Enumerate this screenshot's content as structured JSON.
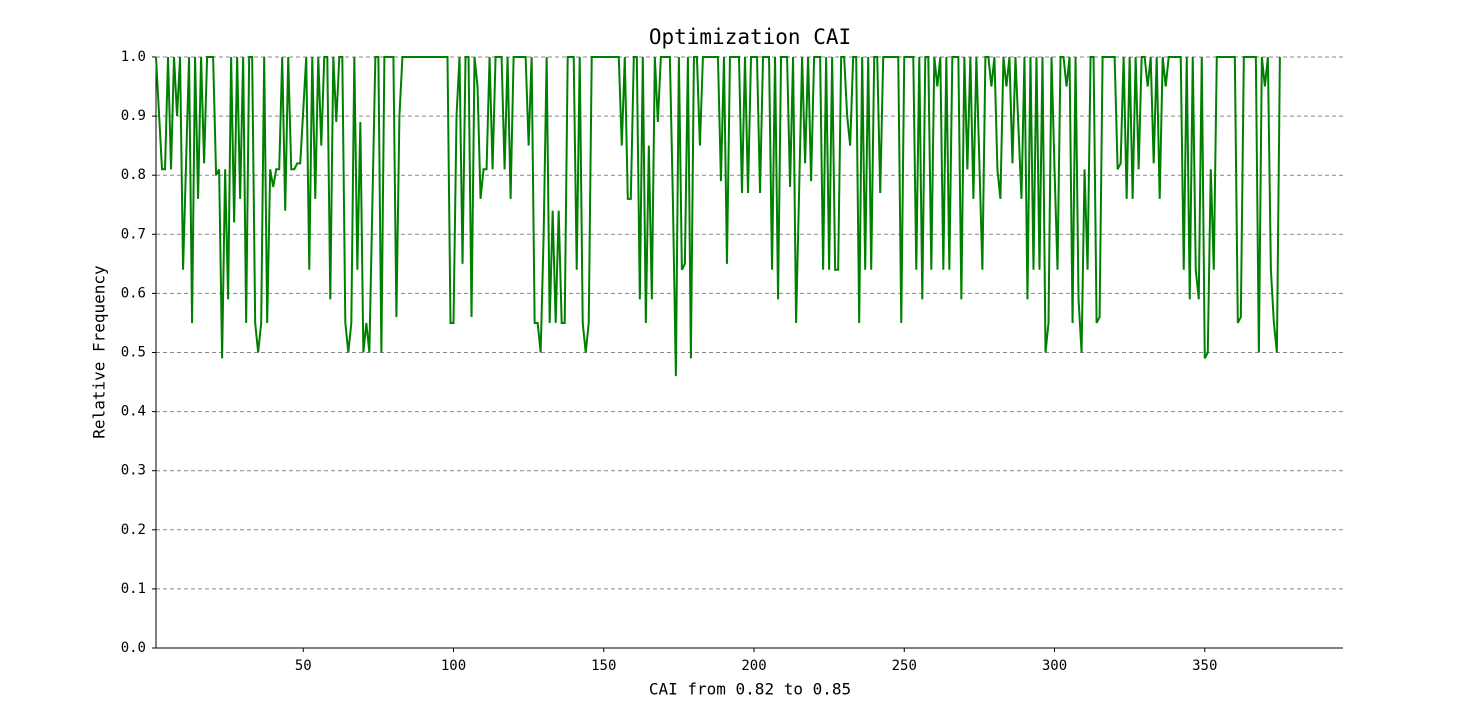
{
  "chart_data": {
    "type": "line",
    "title": "Optimization CAI",
    "x_label": "CAI from 0.82 to 0.85",
    "y_label": "Relative Frequency",
    "grid": true,
    "xlim": [
      1,
      396
    ],
    "xticks": [
      50,
      100,
      150,
      200,
      250,
      300,
      350
    ],
    "ylim": [
      0,
      1
    ],
    "yticks": [
      {
        "value": 0,
        "label": "0.0"
      },
      0.1,
      0.2,
      0.3,
      0.4,
      0.5,
      0.6,
      0.7,
      0.8,
      0.9,
      {
        "value": 1,
        "label": "1.0"
      }
    ],
    "x": [
      1,
      3,
      4,
      5,
      6,
      7,
      8,
      9,
      10,
      11,
      12,
      13,
      14,
      15,
      16,
      17,
      18,
      20,
      21,
      22,
      23,
      24,
      25,
      26,
      27,
      28,
      29,
      30,
      31,
      32,
      33,
      34,
      35,
      36,
      37,
      38,
      39,
      40,
      41,
      42,
      43,
      44,
      45,
      46,
      47,
      48,
      49,
      51,
      52,
      53,
      54,
      55,
      56,
      57,
      58,
      59,
      60,
      61,
      62,
      63,
      64,
      65,
      66,
      67,
      68,
      69,
      70,
      71,
      72,
      74,
      75,
      76,
      77,
      80,
      81,
      82,
      83,
      98,
      99,
      100,
      101,
      102,
      103,
      104,
      105,
      106,
      107,
      108,
      109,
      110,
      111,
      112,
      113,
      114,
      116,
      117,
      118,
      119,
      120,
      124,
      125,
      126,
      127,
      128,
      129,
      130,
      131,
      132,
      133,
      134,
      135,
      136,
      137,
      138,
      140,
      141,
      142,
      143,
      144,
      145,
      146,
      155,
      156,
      157,
      158,
      159,
      160,
      161,
      162,
      163,
      164,
      165,
      166,
      167,
      168,
      169,
      172,
      173,
      174,
      175,
      176,
      177,
      178,
      179,
      180,
      181,
      182,
      183,
      188,
      189,
      190,
      191,
      192,
      195,
      196,
      197,
      198,
      199,
      201,
      202,
      203,
      205,
      206,
      207,
      208,
      209,
      211,
      212,
      213,
      214,
      215,
      216,
      217,
      218,
      219,
      220,
      222,
      223,
      224,
      225,
      226,
      227,
      228,
      229,
      230,
      231,
      232,
      233,
      234,
      235,
      236,
      237,
      238,
      239,
      240,
      241,
      242,
      243,
      248,
      249,
      250,
      252,
      253,
      254,
      255,
      256,
      257,
      258,
      259,
      260,
      261,
      262,
      263,
      264,
      265,
      266,
      268,
      269,
      270,
      271,
      272,
      273,
      274,
      275,
      276,
      277,
      278,
      279,
      280,
      281,
      282,
      283,
      284,
      285,
      286,
      287,
      289,
      290,
      291,
      292,
      293,
      294,
      295,
      296,
      297,
      298,
      299,
      300,
      301,
      302,
      303,
      304,
      305,
      306,
      307,
      308,
      309,
      310,
      311,
      312,
      313,
      314,
      315,
      316,
      320,
      321,
      322,
      323,
      324,
      325,
      326,
      327,
      328,
      329,
      330,
      331,
      332,
      333,
      334,
      335,
      336,
      337,
      338,
      342,
      343,
      344,
      345,
      346,
      347,
      348,
      349,
      350,
      351,
      352,
      353,
      354,
      360,
      361,
      362,
      363,
      367,
      368,
      369,
      370,
      371,
      372,
      373,
      374,
      375
    ],
    "series": [
      {
        "name": "CAI",
        "color": "#008000",
        "values": [
          1.0,
          0.81,
          0.81,
          1.0,
          0.81,
          1.0,
          0.9,
          1.0,
          0.64,
          0.82,
          1.0,
          0.55,
          1.0,
          0.76,
          1.0,
          0.82,
          1.0,
          1.0,
          0.8,
          0.81,
          0.49,
          0.81,
          0.59,
          1.0,
          0.72,
          1.0,
          0.76,
          1.0,
          0.55,
          1.0,
          1.0,
          0.55,
          0.5,
          0.55,
          1.0,
          0.55,
          0.81,
          0.78,
          0.81,
          0.81,
          1.0,
          0.74,
          1.0,
          0.81,
          0.81,
          0.82,
          0.82,
          1.0,
          0.64,
          1.0,
          0.76,
          1.0,
          0.85,
          1.0,
          1.0,
          0.59,
          1.0,
          0.89,
          1.0,
          1.0,
          0.55,
          0.5,
          0.55,
          1.0,
          0.64,
          0.89,
          0.5,
          0.55,
          0.5,
          1.0,
          1.0,
          0.5,
          1.0,
          1.0,
          0.56,
          0.9,
          1.0,
          1.0,
          0.55,
          0.55,
          0.9,
          1.0,
          0.65,
          1.0,
          1.0,
          0.56,
          1.0,
          0.95,
          0.76,
          0.81,
          0.81,
          1.0,
          0.81,
          1.0,
          1.0,
          0.81,
          1.0,
          0.76,
          1.0,
          1.0,
          0.85,
          1.0,
          0.55,
          0.55,
          0.5,
          0.7,
          1.0,
          0.55,
          0.74,
          0.55,
          0.74,
          0.55,
          0.55,
          1.0,
          1.0,
          0.64,
          1.0,
          0.55,
          0.5,
          0.55,
          1.0,
          1.0,
          0.85,
          1.0,
          0.76,
          0.76,
          1.0,
          1.0,
          0.59,
          1.0,
          0.55,
          0.85,
          0.59,
          1.0,
          0.89,
          1.0,
          1.0,
          0.76,
          0.46,
          1.0,
          0.64,
          0.65,
          1.0,
          0.49,
          1.0,
          1.0,
          0.85,
          1.0,
          1.0,
          0.79,
          1.0,
          0.65,
          1.0,
          1.0,
          0.77,
          1.0,
          0.77,
          1.0,
          1.0,
          0.77,
          1.0,
          1.0,
          0.64,
          1.0,
          0.59,
          1.0,
          1.0,
          0.78,
          1.0,
          0.55,
          0.77,
          1.0,
          0.82,
          1.0,
          0.79,
          1.0,
          1.0,
          0.64,
          1.0,
          0.64,
          1.0,
          0.64,
          0.64,
          1.0,
          1.0,
          0.9,
          0.85,
          1.0,
          1.0,
          0.55,
          1.0,
          0.64,
          1.0,
          0.64,
          1.0,
          1.0,
          0.77,
          1.0,
          1.0,
          0.55,
          1.0,
          1.0,
          1.0,
          0.64,
          1.0,
          0.59,
          1.0,
          1.0,
          0.64,
          1.0,
          0.95,
          1.0,
          0.64,
          1.0,
          0.64,
          1.0,
          1.0,
          0.59,
          1.0,
          0.81,
          1.0,
          0.76,
          1.0,
          0.82,
          0.64,
          1.0,
          1.0,
          0.95,
          1.0,
          0.81,
          0.76,
          1.0,
          0.95,
          1.0,
          0.82,
          1.0,
          0.76,
          1.0,
          0.59,
          1.0,
          0.64,
          1.0,
          0.64,
          1.0,
          0.5,
          0.55,
          1.0,
          0.81,
          0.64,
          1.0,
          1.0,
          0.95,
          1.0,
          0.55,
          1.0,
          0.59,
          0.5,
          0.81,
          0.64,
          1.0,
          1.0,
          0.55,
          0.56,
          1.0,
          1.0,
          0.81,
          0.82,
          1.0,
          0.76,
          1.0,
          0.76,
          1.0,
          0.81,
          1.0,
          1.0,
          0.95,
          1.0,
          0.82,
          1.0,
          0.76,
          1.0,
          0.95,
          1.0,
          1.0,
          0.64,
          1.0,
          0.59,
          1.0,
          0.64,
          0.59,
          1.0,
          0.49,
          0.5,
          0.81,
          0.64,
          1.0,
          1.0,
          0.55,
          0.56,
          1.0,
          1.0,
          0.5,
          1.0,
          0.95,
          1.0,
          0.64,
          0.55,
          0.5,
          1.0
        ]
      }
    ]
  }
}
